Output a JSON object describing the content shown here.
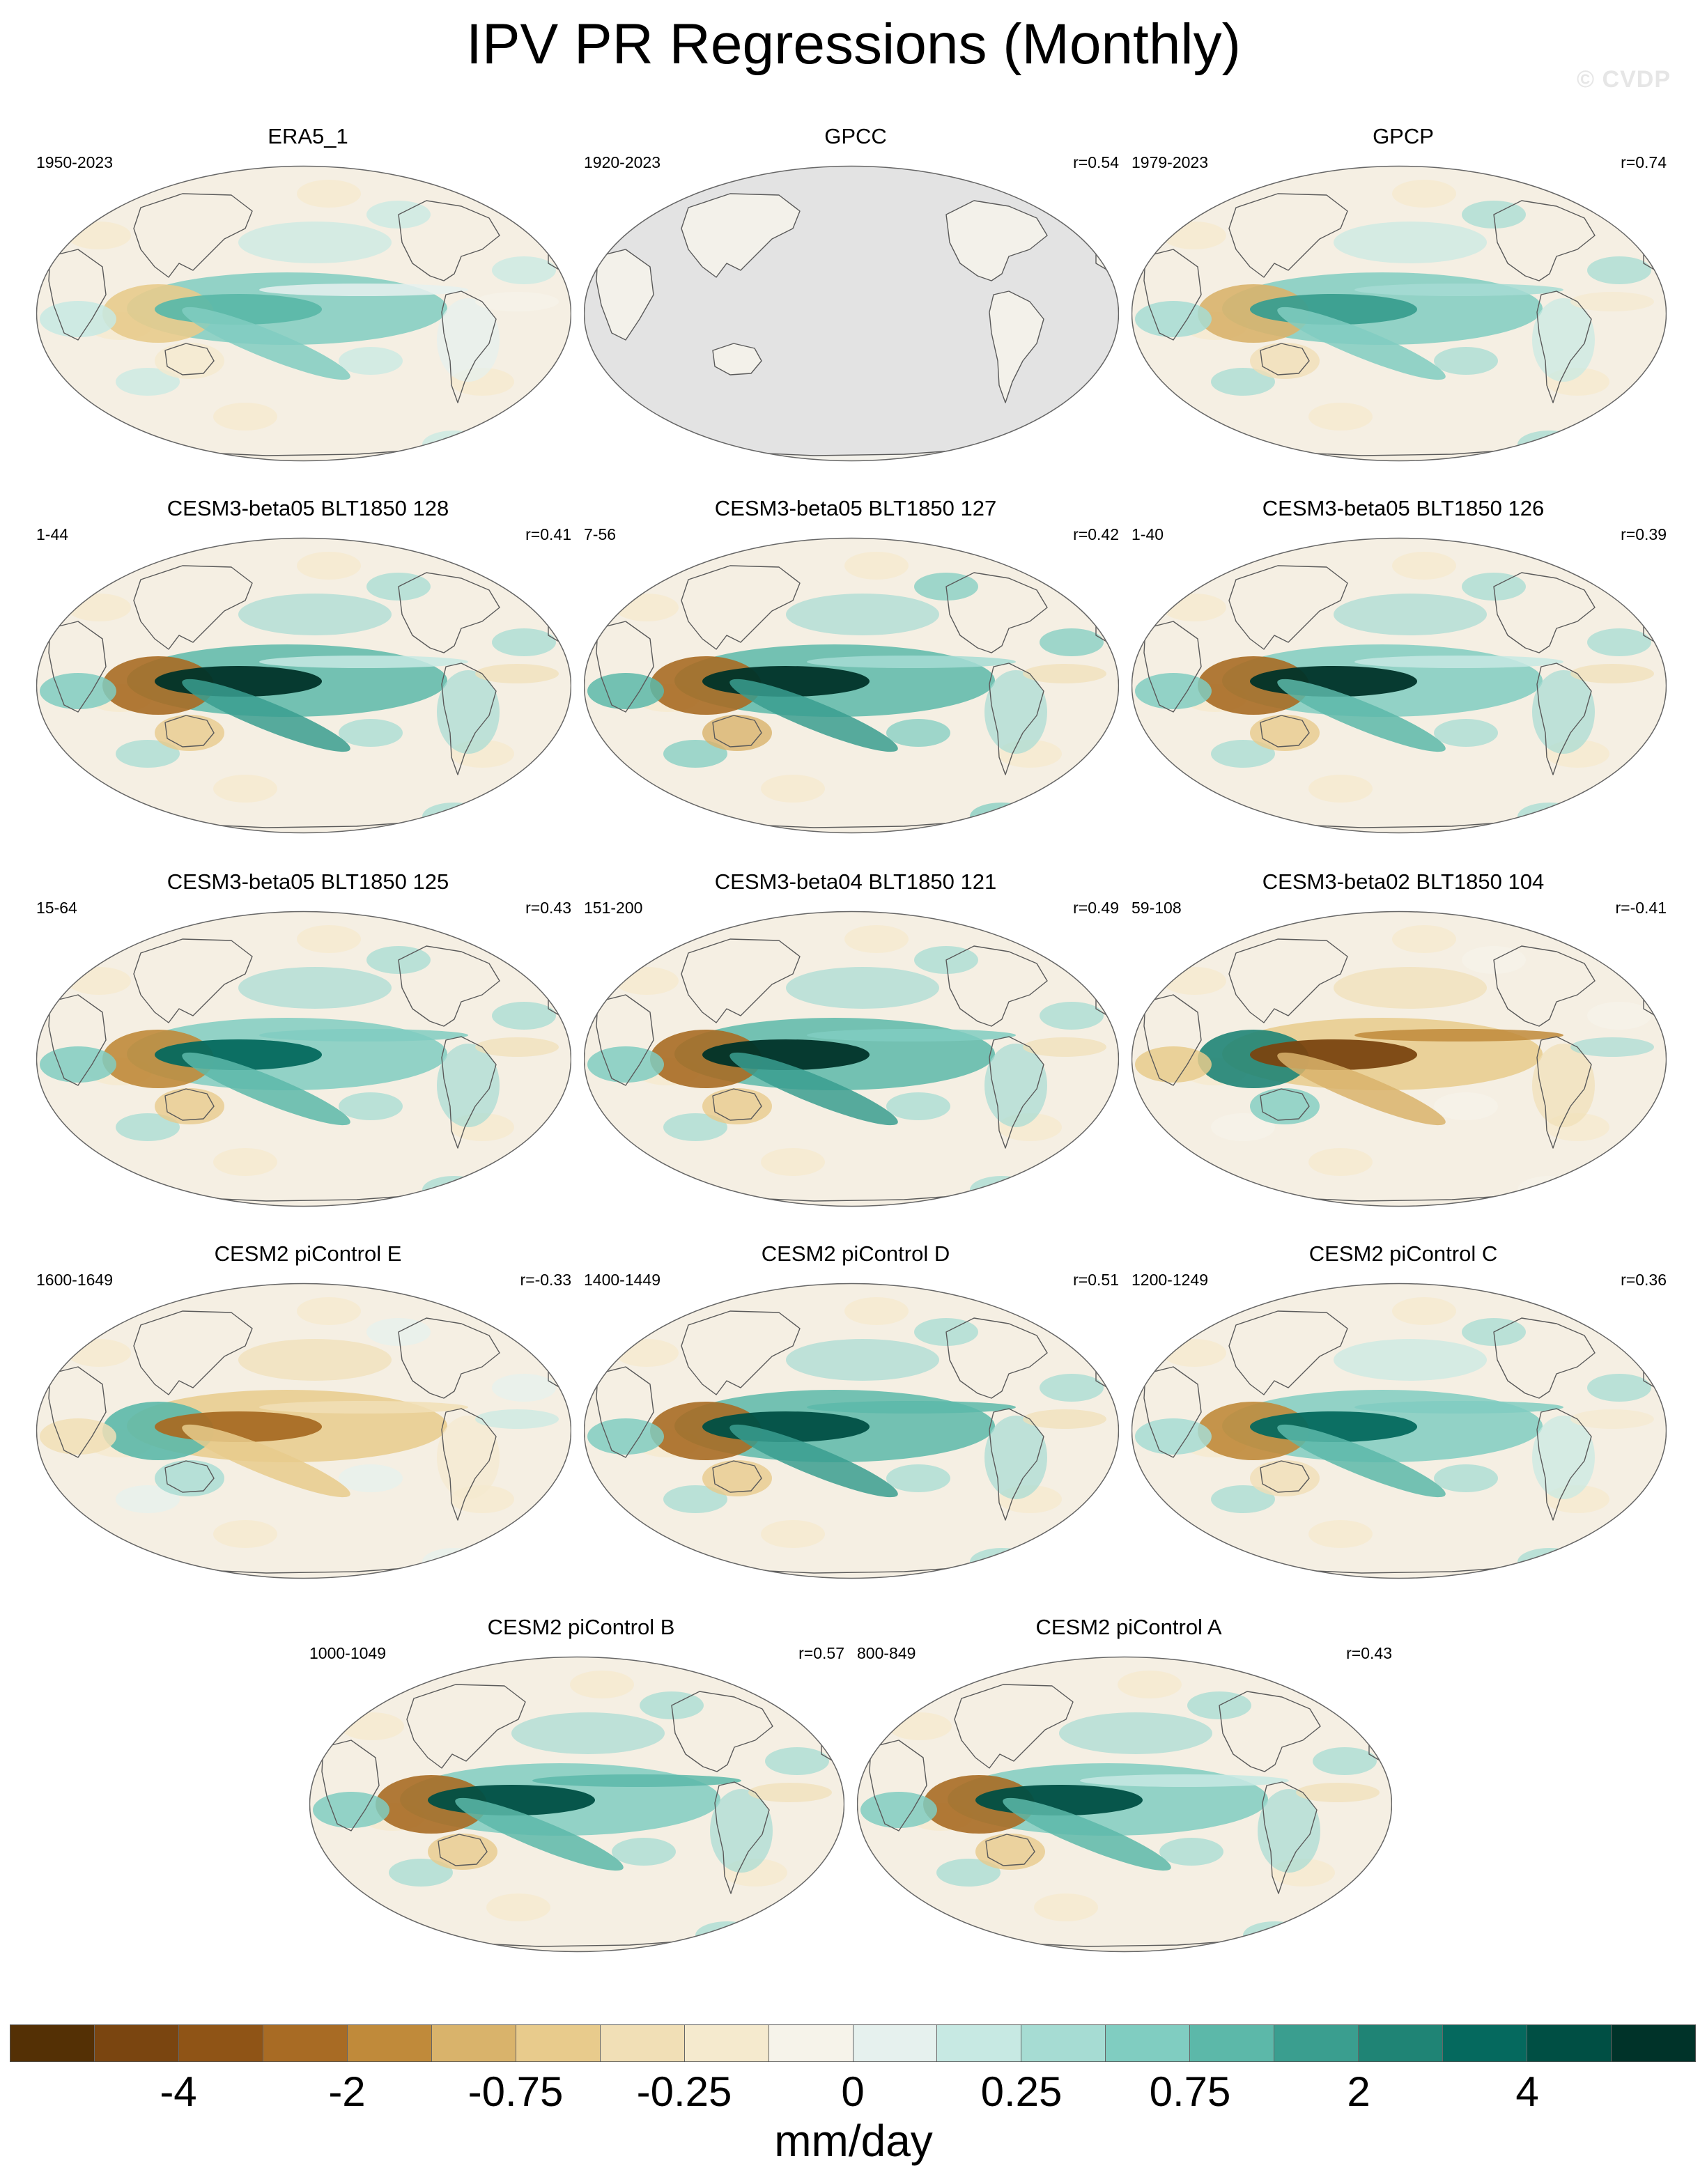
{
  "title": "IPV PR Regressions (Monthly)",
  "watermark": "© CVDP",
  "panels": [
    {
      "name": "ERA5_1",
      "period": "1950-2023",
      "r": "",
      "mask_ocean": false,
      "pattern": [
        0.15,
        0.45,
        0.55,
        0.0
      ]
    },
    {
      "name": "GPCC",
      "period": "1920-2023",
      "r": "r=0.54",
      "mask_ocean": true,
      "pattern": [
        0.1,
        0.3,
        0.3,
        0.0
      ]
    },
    {
      "name": "GPCP",
      "period": "1979-2023",
      "r": "r=0.74",
      "mask_ocean": false,
      "pattern": [
        0.35,
        0.6,
        0.55,
        0.2
      ]
    },
    {
      "name": "CESM3-beta05 BLT1850 128",
      "period": "1-44",
      "r": "r=0.41",
      "mask_ocean": false,
      "pattern": [
        0.6,
        0.95,
        0.75,
        0.15
      ]
    },
    {
      "name": "CESM3-beta05 BLT1850 127",
      "period": "7-56",
      "r": "r=0.42",
      "mask_ocean": false,
      "pattern": [
        0.65,
        0.95,
        0.8,
        0.2
      ]
    },
    {
      "name": "CESM3-beta05 BLT1850 126",
      "period": "1-40",
      "r": "r=0.39",
      "mask_ocean": false,
      "pattern": [
        0.55,
        0.95,
        0.7,
        0.15
      ]
    },
    {
      "name": "CESM3-beta05 BLT1850 125",
      "period": "15-64",
      "r": "r=0.43",
      "mask_ocean": false,
      "pattern": [
        0.5,
        0.8,
        0.65,
        0.3
      ]
    },
    {
      "name": "CESM3-beta04 BLT1850 121",
      "period": "151-200",
      "r": "r=0.49",
      "mask_ocean": false,
      "pattern": [
        0.6,
        0.95,
        0.75,
        0.3
      ]
    },
    {
      "name": "CESM3-beta02 BLT1850 104",
      "period": "59-108",
      "r": "r=-0.41",
      "mask_ocean": false,
      "pattern": [
        -0.6,
        -0.85,
        -0.6,
        -0.5
      ]
    },
    {
      "name": "CESM2 piControl E",
      "period": "1600-1649",
      "r": "r=-0.33",
      "mask_ocean": false,
      "pattern": [
        -0.45,
        -0.65,
        -0.55,
        -0.2
      ]
    },
    {
      "name": "CESM2 piControl D",
      "period": "1400-1449",
      "r": "r=0.51",
      "mask_ocean": false,
      "pattern": [
        0.55,
        0.9,
        0.75,
        0.45
      ]
    },
    {
      "name": "CESM2 piControl C",
      "period": "1200-1249",
      "r": "r=0.36",
      "mask_ocean": false,
      "pattern": [
        0.4,
        0.75,
        0.65,
        0.35
      ]
    },
    {
      "name": "CESM2 piControl B",
      "period": "1000-1049",
      "r": "r=0.57",
      "mask_ocean": false,
      "pattern": [
        0.5,
        0.9,
        0.7,
        0.4
      ]
    },
    {
      "name": "CESM2 piControl A",
      "period": "800-849",
      "r": "r=0.43",
      "mask_ocean": false,
      "pattern": [
        0.55,
        0.85,
        0.7,
        0.15
      ]
    }
  ],
  "colorbar": {
    "colors": [
      "#543005",
      "#7a4510",
      "#8f5416",
      "#a86b24",
      "#c08a3a",
      "#d9b36b",
      "#e8cb8c",
      "#f1dfb6",
      "#f5eace",
      "#f6f3ea",
      "#e6f1ee",
      "#c7e9e3",
      "#a6dcd3",
      "#80cdc1",
      "#5cb8a9",
      "#3a9e8f",
      "#1f8475",
      "#05695e",
      "#004f44",
      "#003329"
    ],
    "ticks": [
      {
        "label": "-4",
        "boundary": 2
      },
      {
        "label": "-2",
        "boundary": 4
      },
      {
        "label": "-0.75",
        "boundary": 6
      },
      {
        "label": "-0.25",
        "boundary": 8
      },
      {
        "label": "0",
        "boundary": 10
      },
      {
        "label": "0.25",
        "boundary": 12
      },
      {
        "label": "0.75",
        "boundary": 14
      },
      {
        "label": "2",
        "boundary": 16
      },
      {
        "label": "4",
        "boundary": 18
      }
    ],
    "unit": "mm/day"
  }
}
